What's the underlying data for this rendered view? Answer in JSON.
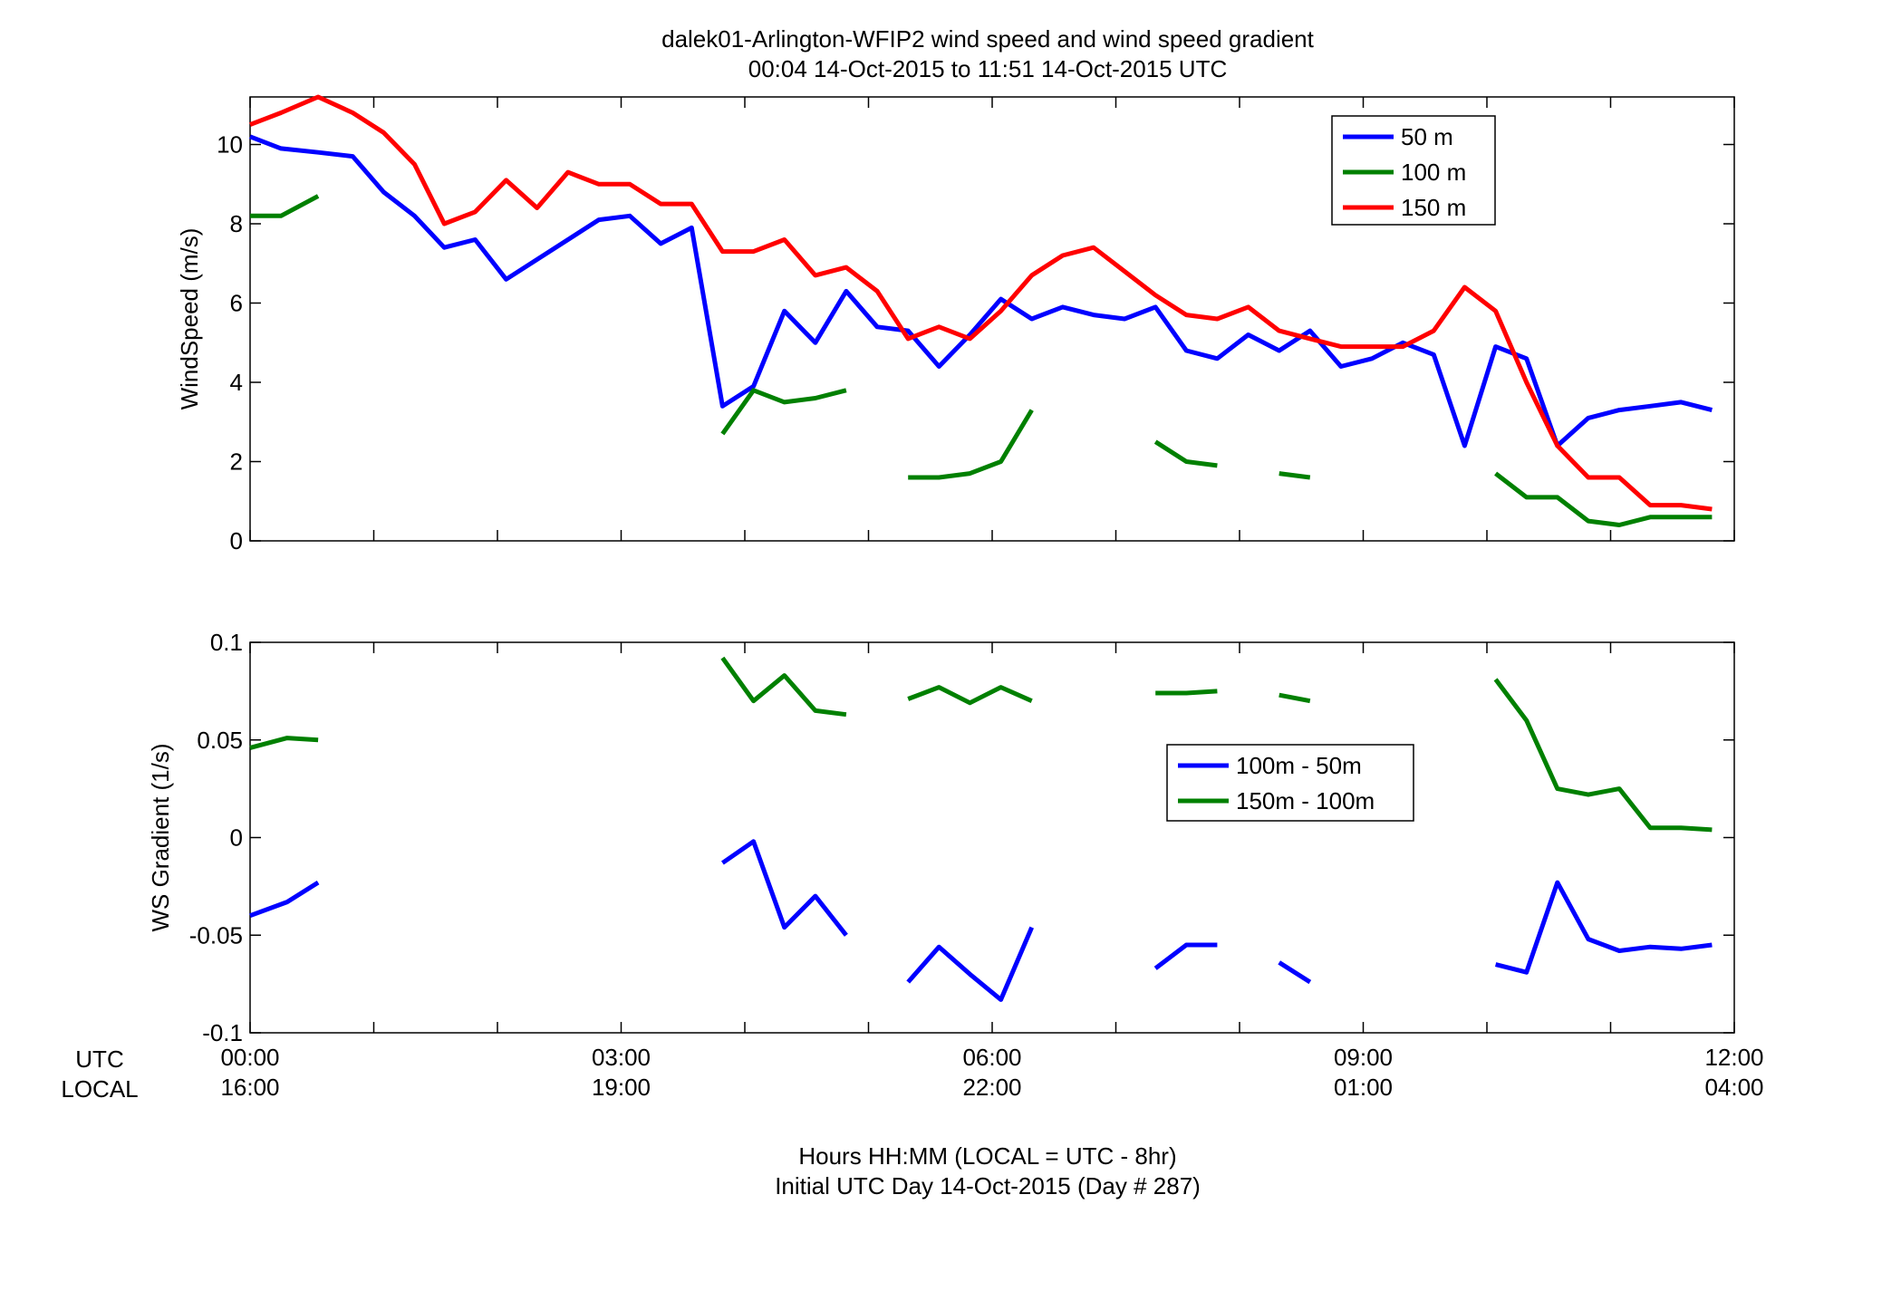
{
  "figure": {
    "title_line1": "dalek01-Arlington-WFIP2  wind speed and wind speed gradient",
    "title_line2": "00:04 14-Oct-2015 to 11:51 14-Oct-2015  UTC",
    "utc_label": "UTC",
    "local_label": "LOCAL",
    "x_ticks_utc": [
      "00:00",
      "03:00",
      "06:00",
      "09:00",
      "12:00"
    ],
    "x_ticks_local": [
      "16:00",
      "19:00",
      "22:00",
      "01:00",
      "04:00"
    ],
    "footer_line1": "Hours HH:MM  (LOCAL = UTC - 8hr)",
    "footer_line2": "Initial UTC Day 14-Oct-2015 (Day # 287)"
  },
  "chart_data": [
    {
      "type": "line",
      "ylabel": "WindSpeed (m/s)",
      "xlim": [
        0,
        12
      ],
      "ylim": [
        0,
        11.2
      ],
      "y_ticks": [
        0,
        2,
        4,
        6,
        8,
        10
      ],
      "x_ticks": [
        0,
        3,
        6,
        9,
        12
      ],
      "legend_position": "top-right",
      "series": [
        {
          "name": "50 m",
          "color": "#0000ff",
          "x": [
            0.0,
            0.25,
            0.55,
            0.83,
            1.08,
            1.33,
            1.57,
            1.82,
            2.07,
            2.82,
            3.07,
            3.32,
            3.57,
            3.82,
            4.07,
            4.32,
            4.57,
            4.82,
            5.07,
            5.32,
            5.57,
            5.82,
            6.07,
            6.32,
            6.57,
            6.82,
            7.07,
            7.32,
            7.57,
            7.82,
            8.07,
            8.32,
            8.57,
            8.82,
            9.07,
            9.32,
            9.57,
            9.82,
            10.07,
            10.32,
            10.57,
            10.82,
            11.07,
            11.32,
            11.57,
            11.82
          ],
          "y": [
            10.2,
            9.9,
            9.8,
            9.7,
            8.8,
            8.2,
            7.4,
            7.6,
            6.6,
            8.1,
            8.2,
            7.5,
            7.9,
            3.4,
            3.9,
            5.8,
            5.0,
            6.3,
            5.4,
            5.3,
            4.4,
            5.2,
            6.1,
            5.6,
            5.9,
            5.7,
            5.6,
            5.9,
            4.8,
            4.6,
            5.2,
            4.8,
            5.3,
            4.4,
            4.6,
            5.0,
            4.7,
            2.4,
            4.9,
            4.6,
            2.4,
            3.1,
            3.3,
            3.4,
            3.5,
            3.3
          ]
        },
        {
          "name": "100 m",
          "color": "#008000",
          "x": [
            0.0,
            0.25,
            0.55,
            null,
            3.82,
            4.07,
            4.32,
            4.57,
            4.82,
            null,
            5.32,
            5.57,
            5.82,
            6.07,
            6.32,
            null,
            7.32,
            7.57,
            7.82,
            null,
            8.32,
            8.57,
            null,
            10.07,
            10.32,
            10.57,
            10.82,
            11.07,
            11.32,
            11.57,
            11.82
          ],
          "y": [
            8.2,
            8.2,
            8.7,
            null,
            2.7,
            3.8,
            3.5,
            3.6,
            3.8,
            null,
            1.6,
            1.6,
            1.7,
            2.0,
            3.3,
            null,
            2.5,
            2.0,
            1.9,
            null,
            1.7,
            1.6,
            null,
            1.7,
            1.1,
            1.1,
            0.5,
            0.4,
            0.6,
            0.6,
            0.6
          ]
        },
        {
          "name": "150 m",
          "color": "#ff0000",
          "x": [
            0.0,
            0.25,
            0.55,
            0.83,
            1.08,
            1.33,
            1.57,
            1.82,
            2.07,
            2.32,
            2.57,
            2.82,
            3.07,
            3.32,
            3.57,
            3.82,
            4.07,
            4.32,
            4.57,
            4.82,
            5.07,
            5.32,
            5.57,
            5.82,
            6.07,
            6.32,
            6.57,
            6.82,
            7.07,
            7.32,
            7.57,
            7.82,
            8.07,
            8.32,
            8.57,
            8.82,
            9.07,
            9.32,
            9.57,
            9.82,
            10.07,
            10.32,
            10.57,
            10.82,
            11.07,
            11.32,
            11.57,
            11.82
          ],
          "y": [
            10.5,
            10.8,
            11.2,
            10.8,
            10.3,
            9.5,
            8.0,
            8.3,
            9.1,
            8.4,
            9.3,
            9.0,
            9.0,
            8.5,
            8.5,
            7.3,
            7.3,
            7.6,
            6.7,
            6.9,
            6.3,
            5.1,
            5.4,
            5.1,
            5.8,
            6.7,
            7.2,
            7.4,
            6.8,
            6.2,
            5.7,
            5.6,
            5.9,
            5.3,
            5.1,
            4.9,
            4.9,
            4.9,
            5.3,
            6.4,
            5.8,
            4.0,
            2.4,
            1.6,
            1.6,
            0.9,
            0.9,
            0.8
          ]
        }
      ]
    },
    {
      "type": "line",
      "ylabel": "WS Gradient (1/s)",
      "xlim": [
        0,
        12
      ],
      "ylim": [
        -0.1,
        0.1
      ],
      "y_ticks": [
        -0.1,
        -0.05,
        0,
        0.05,
        0.1
      ],
      "y_tick_labels": [
        "-0.1",
        "-0.05",
        "0",
        "0.05",
        "0.1"
      ],
      "x_ticks": [
        0,
        3,
        6,
        9,
        12
      ],
      "legend_position": "center-right",
      "series": [
        {
          "name": "100m - 50m",
          "color": "#0000ff",
          "x": [
            0.0,
            0.3,
            0.55,
            null,
            3.82,
            4.07,
            4.32,
            4.57,
            4.82,
            null,
            5.32,
            5.57,
            5.82,
            6.07,
            6.32,
            null,
            7.32,
            7.57,
            7.82,
            null,
            8.32,
            8.57,
            null,
            10.07,
            10.32,
            10.57,
            10.82,
            11.07,
            11.32,
            11.57,
            11.82
          ],
          "y": [
            -0.04,
            -0.033,
            -0.023,
            null,
            -0.013,
            -0.002,
            -0.046,
            -0.03,
            -0.05,
            null,
            -0.074,
            -0.056,
            -0.07,
            -0.083,
            -0.046,
            null,
            -0.067,
            -0.055,
            -0.055,
            null,
            -0.064,
            -0.074,
            null,
            -0.065,
            -0.069,
            -0.023,
            -0.052,
            -0.058,
            -0.056,
            -0.057,
            -0.055
          ]
        },
        {
          "name": "150m - 100m",
          "color": "#008000",
          "x": [
            0.0,
            0.3,
            0.55,
            null,
            3.82,
            4.07,
            4.32,
            4.57,
            4.82,
            null,
            5.32,
            5.57,
            5.82,
            6.07,
            6.32,
            null,
            7.32,
            7.57,
            7.82,
            null,
            8.32,
            8.57,
            null,
            10.07,
            10.32,
            10.57,
            10.82,
            11.07,
            11.32,
            11.57,
            11.82
          ],
          "y": [
            0.046,
            0.051,
            0.05,
            null,
            0.092,
            0.07,
            0.083,
            0.065,
            0.063,
            null,
            0.071,
            0.077,
            0.069,
            0.077,
            0.07,
            null,
            0.074,
            0.074,
            0.075,
            null,
            0.073,
            0.07,
            null,
            0.081,
            0.06,
            0.025,
            0.022,
            0.025,
            0.005,
            0.005,
            0.004
          ]
        }
      ]
    }
  ]
}
